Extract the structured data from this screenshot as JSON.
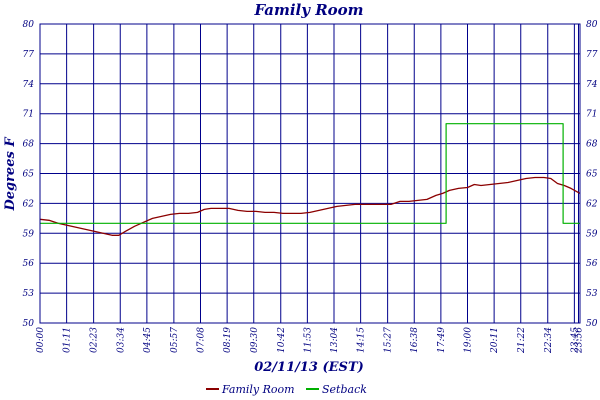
{
  "chart_data": {
    "type": "line",
    "title": "Family Room",
    "xlabel": "02/11/13 (EST)",
    "ylabel": "Degrees F",
    "ylim": [
      50,
      80
    ],
    "yticks": [
      50,
      53,
      56,
      59,
      62,
      65,
      68,
      71,
      74,
      77,
      80
    ],
    "xlim_hours": [
      0,
      24
    ],
    "x_unit": "hour of day",
    "xtick_labels": [
      "00:00",
      "01:11",
      "02:23",
      "03:34",
      "04:45",
      "05:57",
      "07:08",
      "08:19",
      "09:30",
      "10:42",
      "11:53",
      "13:04",
      "14:15",
      "15:27",
      "16:38",
      "17:49",
      "19:00",
      "20:11",
      "21:22",
      "22:34",
      "23:45",
      "23:56"
    ],
    "xtick_hours": [
      0,
      1.1833,
      2.3833,
      3.5667,
      4.75,
      5.95,
      7.1333,
      8.3167,
      9.5,
      10.7,
      11.8833,
      13.0667,
      14.25,
      15.45,
      16.6333,
      17.8167,
      19.0,
      20.1833,
      21.3667,
      22.5667,
      23.75,
      23.9333
    ],
    "grid": true,
    "legend_position": "bottom-center",
    "series": [
      {
        "name": "Family Room",
        "color": "#8b0000",
        "step": false,
        "points": [
          [
            0,
            60.4
          ],
          [
            0.4,
            60.3
          ],
          [
            0.8,
            60.0
          ],
          [
            1.2,
            59.8
          ],
          [
            1.6,
            59.6
          ],
          [
            2.0,
            59.4
          ],
          [
            2.4,
            59.2
          ],
          [
            2.8,
            59.0
          ],
          [
            3.2,
            58.8
          ],
          [
            3.5,
            58.8
          ],
          [
            3.8,
            59.2
          ],
          [
            4.2,
            59.7
          ],
          [
            4.6,
            60.1
          ],
          [
            5.0,
            60.5
          ],
          [
            5.4,
            60.7
          ],
          [
            5.8,
            60.9
          ],
          [
            6.2,
            61.0
          ],
          [
            6.6,
            61.0
          ],
          [
            7.0,
            61.1
          ],
          [
            7.3,
            61.4
          ],
          [
            7.6,
            61.5
          ],
          [
            8.0,
            61.5
          ],
          [
            8.4,
            61.5
          ],
          [
            8.8,
            61.3
          ],
          [
            9.2,
            61.2
          ],
          [
            9.6,
            61.2
          ],
          [
            10.0,
            61.1
          ],
          [
            10.4,
            61.1
          ],
          [
            10.8,
            61.0
          ],
          [
            11.2,
            61.0
          ],
          [
            11.6,
            61.0
          ],
          [
            12.0,
            61.1
          ],
          [
            12.4,
            61.3
          ],
          [
            12.8,
            61.5
          ],
          [
            13.2,
            61.7
          ],
          [
            13.6,
            61.8
          ],
          [
            14.0,
            61.9
          ],
          [
            14.4,
            61.9
          ],
          [
            14.8,
            61.9
          ],
          [
            15.2,
            61.9
          ],
          [
            15.6,
            61.9
          ],
          [
            16.0,
            62.2
          ],
          [
            16.4,
            62.2
          ],
          [
            16.8,
            62.3
          ],
          [
            17.2,
            62.4
          ],
          [
            17.6,
            62.8
          ],
          [
            17.9,
            63.0
          ],
          [
            18.2,
            63.3
          ],
          [
            18.6,
            63.5
          ],
          [
            19.0,
            63.6
          ],
          [
            19.3,
            63.9
          ],
          [
            19.6,
            63.8
          ],
          [
            20.0,
            63.9
          ],
          [
            20.4,
            64.0
          ],
          [
            20.8,
            64.1
          ],
          [
            21.2,
            64.3
          ],
          [
            21.6,
            64.5
          ],
          [
            22.0,
            64.6
          ],
          [
            22.4,
            64.6
          ],
          [
            22.7,
            64.5
          ],
          [
            23.0,
            64.0
          ],
          [
            23.3,
            63.8
          ],
          [
            23.6,
            63.5
          ],
          [
            24.0,
            63.0
          ]
        ]
      },
      {
        "name": "Setback",
        "color": "#00b000",
        "step": true,
        "points": [
          [
            0,
            60
          ],
          [
            18.05,
            60
          ],
          [
            18.05,
            70
          ],
          [
            23.25,
            70
          ],
          [
            23.25,
            60
          ],
          [
            24,
            60
          ]
        ]
      }
    ]
  }
}
